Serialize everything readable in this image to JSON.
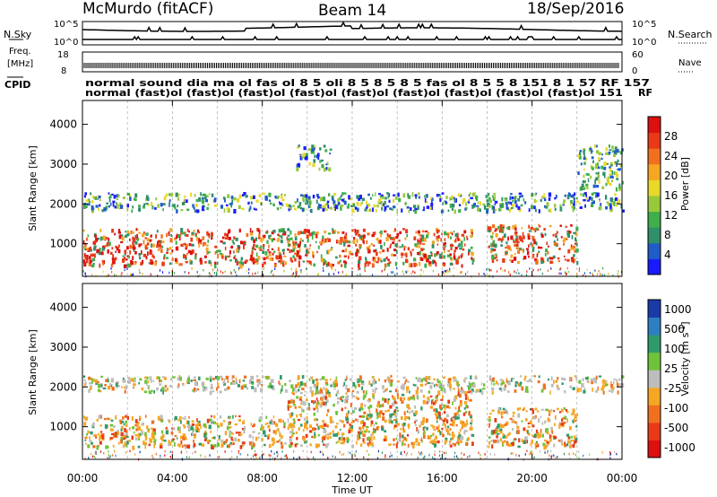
{
  "header": {
    "station": "McMurdo (fitACF)",
    "beam": "Beam 14",
    "date": "18/Sep/2016"
  },
  "top_panel": {
    "left_label": "N.Sky",
    "right_label": "N.Search",
    "left_ticks": [
      "10^5",
      "10^0"
    ],
    "right_ticks": [
      "10^5",
      "10^0"
    ]
  },
  "freq_panel": {
    "left_label_1": "Freq.",
    "left_label_2": "[MHz]",
    "right_label": "Nave",
    "left_ticks": [
      "18",
      "8"
    ],
    "right_ticks": [
      "60",
      "0"
    ]
  },
  "cpid_panel": {
    "left_label": "CPID",
    "right_label": "RF",
    "row1": [
      "normal",
      "sound",
      "dia",
      "ma",
      "ol",
      "",
      "fas",
      "ol",
      "",
      "8",
      "5",
      "oli",
      "",
      "8",
      "5",
      "",
      "",
      "8",
      "5",
      "",
      "",
      "8",
      "5",
      "",
      "",
      "fas",
      "",
      "ol",
      "",
      "8",
      "5",
      "",
      "",
      "",
      "5",
      "",
      "",
      "8",
      "",
      "",
      "151",
      "8",
      "1",
      "57",
      "RF",
      "157"
    ],
    "row2": [
      "normal",
      "(fast)",
      "",
      "(fast)",
      "",
      "(fast)",
      "",
      "(fast)",
      "",
      "(fast)",
      "",
      "(fast)",
      "",
      "(fast)",
      "",
      "(fast)",
      "",
      "(fast)",
      "",
      "(fast)",
      "",
      "(fast)",
      "151"
    ],
    "row1_display": "normal sound dia ma ol fas ol 8 5 oli 8 5 8 5 8 5 fas ol 8 5 5 8 151 8 1 57 RF 157",
    "row2_display": "normal (fast)ol (fast)ol (fast)ol (fast)ol (fast)ol (fast)ol (fast)ol (fast)ol (fast)ol 151"
  },
  "chart_data": [
    {
      "type": "heatmap",
      "name": "Power",
      "ylabel": "Slant Range [km]",
      "ylim": [
        180,
        4600
      ],
      "yticks": [
        "1000",
        "2000",
        "3000",
        "4000"
      ],
      "colorbar_label": "Power [dB]",
      "colorbar_ticks": [
        "4",
        "8",
        "12",
        "16",
        "20",
        "24",
        "28"
      ],
      "colors": [
        "#1a1aff",
        "#1f5cc8",
        "#2f8f6a",
        "#3fae4b",
        "#98c93a",
        "#e8d82a",
        "#f5a623",
        "#f07020",
        "#e83a18",
        "#dd1010"
      ],
      "bands": [
        {
          "x_start": "00:00",
          "x_end": "17:20",
          "range_low": 480,
          "range_high": 1400,
          "level": "high"
        },
        {
          "x_start": "18:00",
          "x_end": "22:00",
          "range_low": 550,
          "range_high": 1500,
          "level": "high"
        },
        {
          "x_start": "00:00",
          "x_end": "24:00",
          "range_low": 1850,
          "range_high": 2300,
          "level": "low"
        },
        {
          "x_start": "09:30",
          "x_end": "11:00",
          "range_low": 2900,
          "range_high": 3500,
          "level": "low"
        },
        {
          "x_start": "22:00",
          "x_end": "24:00",
          "range_low": 2400,
          "range_high": 3500,
          "level": "mid"
        }
      ]
    },
    {
      "type": "heatmap",
      "name": "Velocity",
      "ylabel": "Slant Range [km]",
      "ylim": [
        180,
        4600
      ],
      "yticks": [
        "1000",
        "2000",
        "3000",
        "4000"
      ],
      "xticks": [
        "00:00",
        "04:00",
        "08:00",
        "12:00",
        "16:00",
        "20:00",
        "00:00"
      ],
      "xlabel": "Time UT",
      "colorbar_label": "Velocity [m s",
      "colorbar_label_exp": "-1",
      "colorbar_label_end": "]",
      "colorbar_ticks": [
        "1000",
        "500",
        "100",
        "25",
        "-25",
        "-100",
        "-500",
        "-1000"
      ],
      "colors": [
        "#1a3aa8",
        "#2e7fc2",
        "#2f9a6a",
        "#6fc33a",
        "#bdbdbd",
        "#f5a623",
        "#f07020",
        "#e83a18",
        "#dd1010"
      ],
      "bands": [
        {
          "x_start": "00:00",
          "x_end": "09:00",
          "range_low": 520,
          "range_high": 1300,
          "dominant": "-100"
        },
        {
          "x_start": "09:00",
          "x_end": "17:20",
          "range_low": 550,
          "range_high": 1900,
          "dominant": "-100"
        },
        {
          "x_start": "18:00",
          "x_end": "22:00",
          "range_low": 520,
          "range_high": 1500,
          "dominant": "-100"
        },
        {
          "x_start": "00:00",
          "x_end": "24:00",
          "range_low": 1900,
          "range_high": 2300,
          "dominant": "25"
        }
      ]
    }
  ]
}
